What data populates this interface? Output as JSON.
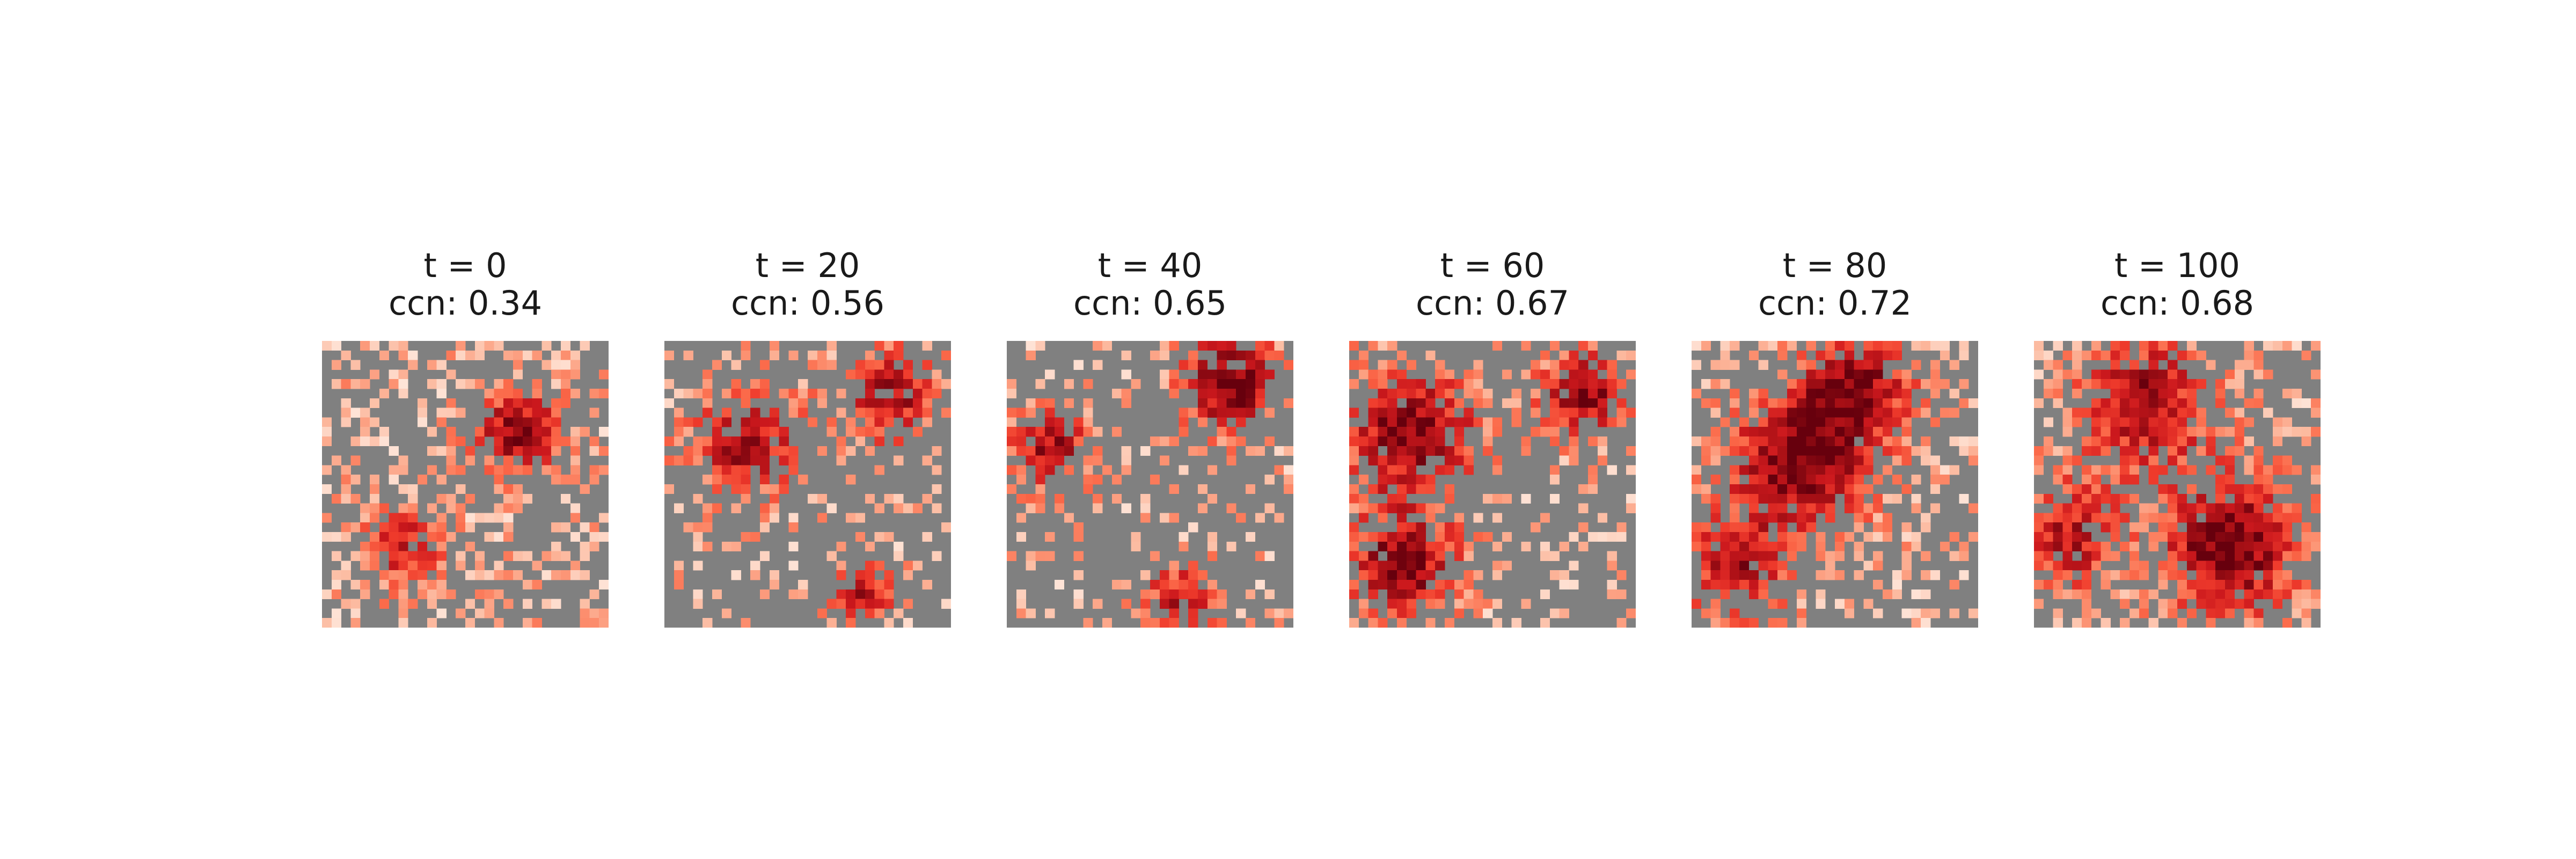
{
  "chart_data": {
    "type": "heatmap",
    "grid_size": 30,
    "colormap": "Reds",
    "background_color": "#808080",
    "empty_value": 0,
    "panels": [
      {
        "title": "t = 0",
        "subtitle": "ccn: 0.34",
        "t": 0,
        "ccn": 0.34,
        "density": 0.38,
        "clusters": [
          {
            "r": 9,
            "c": 20,
            "s": 3,
            "a": 0.9
          },
          {
            "r": 21,
            "c": 8,
            "s": 3,
            "a": 0.6
          }
        ],
        "seed": 11
      },
      {
        "title": "t = 20",
        "subtitle": "ccn: 0.56",
        "t": 20,
        "ccn": 0.56,
        "density": 0.2,
        "clusters": [
          {
            "r": 10,
            "c": 8,
            "s": 4,
            "a": 0.8
          },
          {
            "r": 5,
            "c": 23,
            "s": 3.5,
            "a": 0.8
          },
          {
            "r": 26,
            "c": 20,
            "s": 2.5,
            "a": 0.7
          }
        ],
        "seed": 23
      },
      {
        "title": "t = 40",
        "subtitle": "ccn: 0.65",
        "t": 40,
        "ccn": 0.65,
        "density": 0.18,
        "clusters": [
          {
            "r": 4,
            "c": 23,
            "s": 3.5,
            "a": 1.0
          },
          {
            "r": 11,
            "c": 4,
            "s": 3,
            "a": 0.8
          },
          {
            "r": 27,
            "c": 18,
            "s": 3,
            "a": 0.7
          }
        ],
        "seed": 37
      },
      {
        "title": "t = 60",
        "subtitle": "ccn: 0.67",
        "t": 60,
        "ccn": 0.67,
        "density": 0.22,
        "clusters": [
          {
            "r": 9,
            "c": 6,
            "s": 5,
            "a": 0.9
          },
          {
            "r": 23,
            "c": 5,
            "s": 4,
            "a": 0.9
          },
          {
            "r": 5,
            "c": 24,
            "s": 3,
            "a": 0.9
          }
        ],
        "seed": 41
      },
      {
        "title": "t = 80",
        "subtitle": "ccn: 0.72",
        "t": 80,
        "ccn": 0.72,
        "density": 0.3,
        "clusters": [
          {
            "r": 12,
            "c": 11,
            "s": 5,
            "a": 1.0
          },
          {
            "r": 4,
            "c": 17,
            "s": 4,
            "a": 0.8
          },
          {
            "r": 23,
            "c": 4,
            "s": 4,
            "a": 0.7
          }
        ],
        "seed": 53
      },
      {
        "title": "t = 100",
        "subtitle": "ccn: 0.68",
        "t": 100,
        "ccn": 0.68,
        "density": 0.32,
        "clusters": [
          {
            "r": 21,
            "c": 20,
            "s": 5,
            "a": 1.0
          },
          {
            "r": 6,
            "c": 11,
            "s": 5,
            "a": 0.8
          },
          {
            "r": 20,
            "c": 3,
            "s": 4,
            "a": 0.7
          }
        ],
        "seed": 67
      }
    ]
  }
}
